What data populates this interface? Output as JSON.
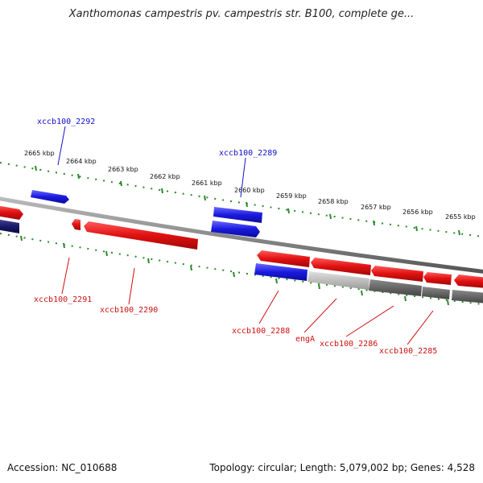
{
  "title": "Xanthomonas campestris pv. campestris str. B100, complete ge...",
  "footer": {
    "accession": "Accession: NC_010688",
    "summary": "Topology: circular; Length: 5,079,002 bp; Genes: 4,528"
  },
  "colors": {
    "forward_gene": "#e01010",
    "reverse_gene": "#1a1ae0",
    "tick": "#2a8a2a",
    "backbone": "#8c8c8c",
    "label_forward": "#cc1010",
    "label_reverse": "#1010cc"
  },
  "scale_labels": [
    "2665 kbp",
    "2664 kbp",
    "2663 kbp",
    "2662 kbp",
    "2661 kbp",
    "2660 kbp",
    "2659 kbp",
    "2658 kbp",
    "2657 kbp",
    "2656 kbp",
    "2655 kbp"
  ],
  "gene_labels": {
    "xccb100_2292": "xccb100_2292",
    "xccb100_2289": "xccb100_2289",
    "xccb100_2291": "xccb100_2291",
    "xccb100_2290": "xccb100_2290",
    "xccb100_2288": "xccb100_2288",
    "engA": "engA",
    "xccb100_2286": "xccb100_2286",
    "xccb100_2285": "xccb100_2285"
  }
}
